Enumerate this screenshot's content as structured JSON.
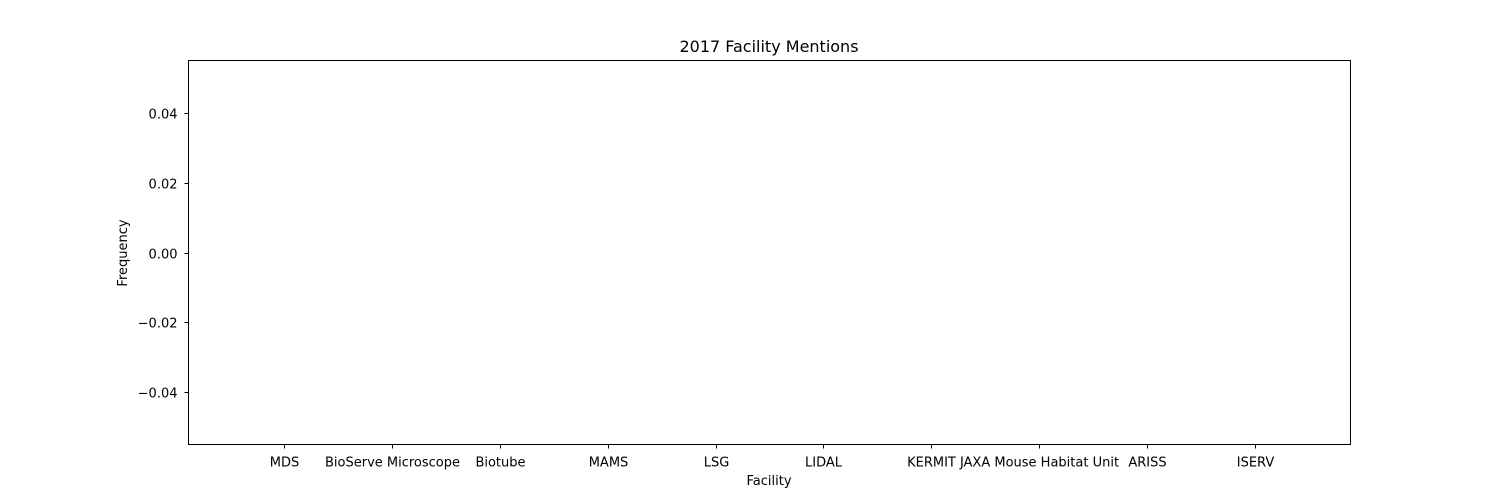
{
  "chart_data": {
    "type": "bar",
    "title": "2017 Facility Mentions",
    "xlabel": "Facility",
    "ylabel": "Frequency",
    "categories": [
      "MDS",
      "BioServe Microscope",
      "Biotube",
      "MAMS",
      "LSG",
      "LIDAL",
      "KERMIT",
      "JAXA Mouse Habitat Unit",
      "ARISS",
      "ISERV"
    ],
    "values": [
      0,
      0,
      0,
      0,
      0,
      0,
      0,
      0,
      0,
      0
    ],
    "ylim": [
      -0.055,
      0.055
    ],
    "yticks": [
      -0.04,
      -0.02,
      0.0,
      0.02,
      0.04
    ],
    "ytick_labels": [
      "−0.04",
      "−0.02",
      "0.00",
      "0.02",
      "0.04"
    ],
    "grid": false,
    "legend": "none"
  }
}
